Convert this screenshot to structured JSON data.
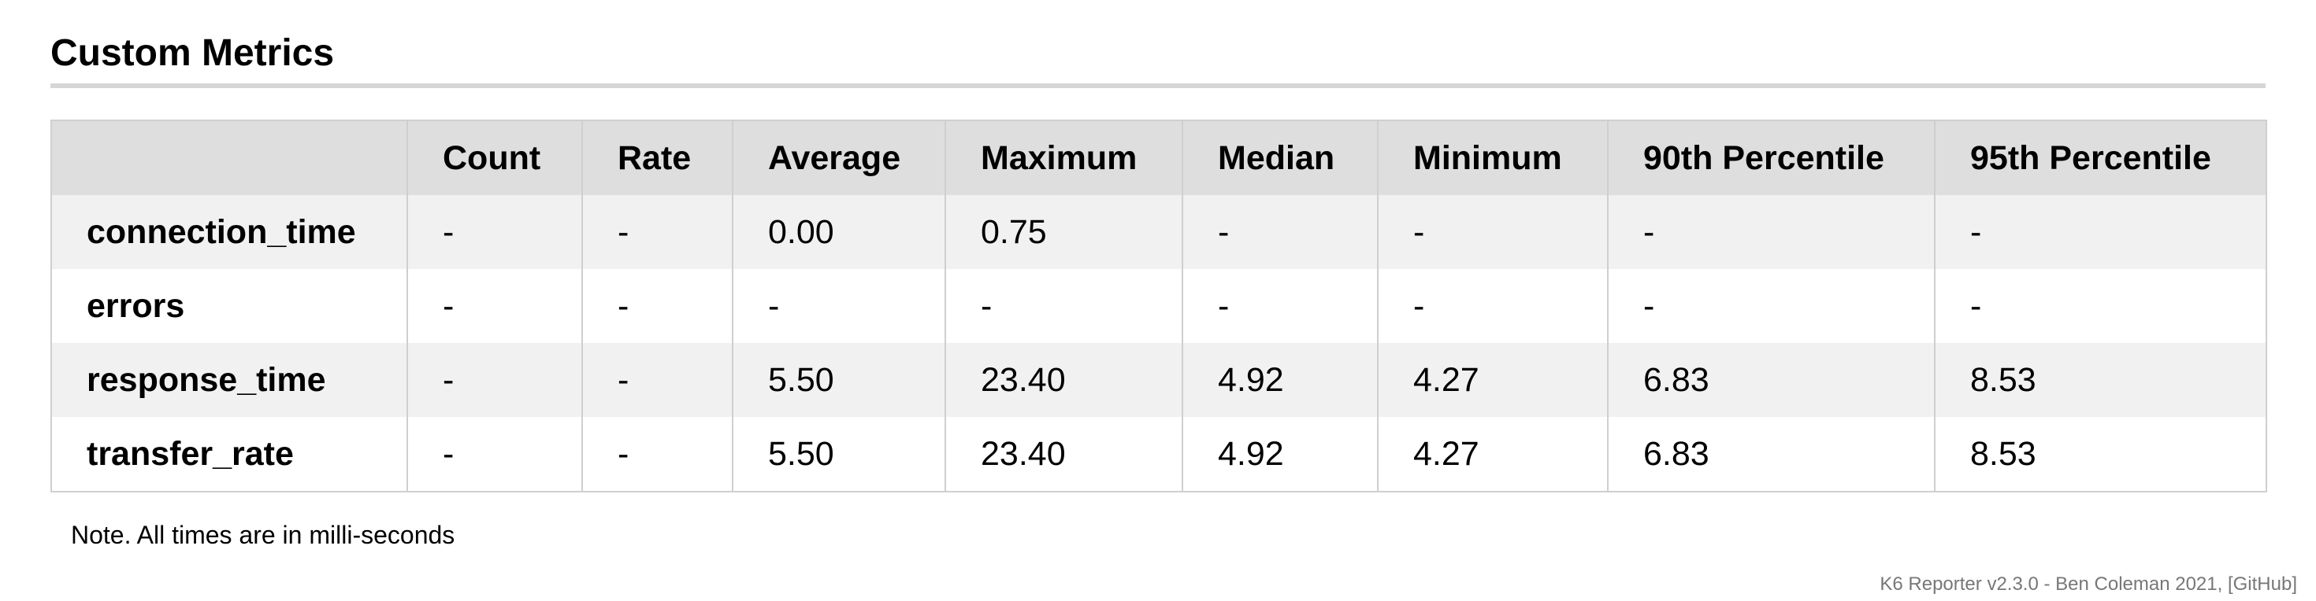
{
  "section": {
    "title": "Custom Metrics"
  },
  "table": {
    "headers": [
      "",
      "Count",
      "Rate",
      "Average",
      "Maximum",
      "Median",
      "Minimum",
      "90th Percentile",
      "95th Percentile"
    ],
    "rows": [
      {
        "name": "connection_time",
        "values": [
          "-",
          "-",
          "0.00",
          "0.75",
          "-",
          "-",
          "-",
          "-"
        ]
      },
      {
        "name": "errors",
        "values": [
          "-",
          "-",
          "-",
          "-",
          "-",
          "-",
          "-",
          "-"
        ]
      },
      {
        "name": "response_time",
        "values": [
          "-",
          "-",
          "5.50",
          "23.40",
          "4.92",
          "4.27",
          "6.83",
          "8.53"
        ]
      },
      {
        "name": "transfer_rate",
        "values": [
          "-",
          "-",
          "5.50",
          "23.40",
          "4.92",
          "4.27",
          "6.83",
          "8.53"
        ]
      }
    ]
  },
  "note": "Note. All times are in milli-seconds",
  "footer": "K6 Reporter v2.3.0 - Ben Coleman 2021, [GitHub]"
}
